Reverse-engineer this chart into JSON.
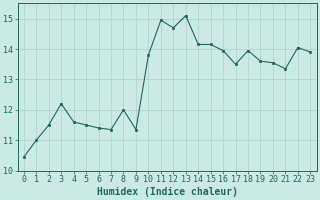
{
  "x": [
    0,
    1,
    2,
    3,
    4,
    5,
    6,
    7,
    8,
    9,
    10,
    11,
    12,
    13,
    14,
    15,
    16,
    17,
    18,
    19,
    20,
    21,
    22,
    23
  ],
  "y": [
    10.45,
    11.0,
    11.5,
    12.2,
    11.6,
    11.5,
    11.4,
    11.35,
    12.0,
    11.35,
    13.8,
    14.95,
    14.7,
    15.1,
    14.15,
    14.15,
    13.95,
    13.5,
    13.95,
    13.6,
    13.55,
    13.35,
    14.05,
    13.9
  ],
  "line_color": "#1a6b5a",
  "marker": "s",
  "marker_size": 2,
  "bg_color": "#cceae4",
  "grid_color": "#b0d4cc",
  "xlabel": "Humidex (Indice chaleur)",
  "ylim": [
    10,
    15.5
  ],
  "xlim": [
    -0.5,
    23.5
  ],
  "yticks": [
    10,
    11,
    12,
    13,
    14,
    15
  ],
  "xticks": [
    0,
    1,
    2,
    3,
    4,
    5,
    6,
    7,
    8,
    9,
    10,
    11,
    12,
    13,
    14,
    15,
    16,
    17,
    18,
    19,
    20,
    21,
    22,
    23
  ],
  "tick_color": "#1a6b5a",
  "tick_fontsize": 6,
  "xlabel_fontsize": 7
}
